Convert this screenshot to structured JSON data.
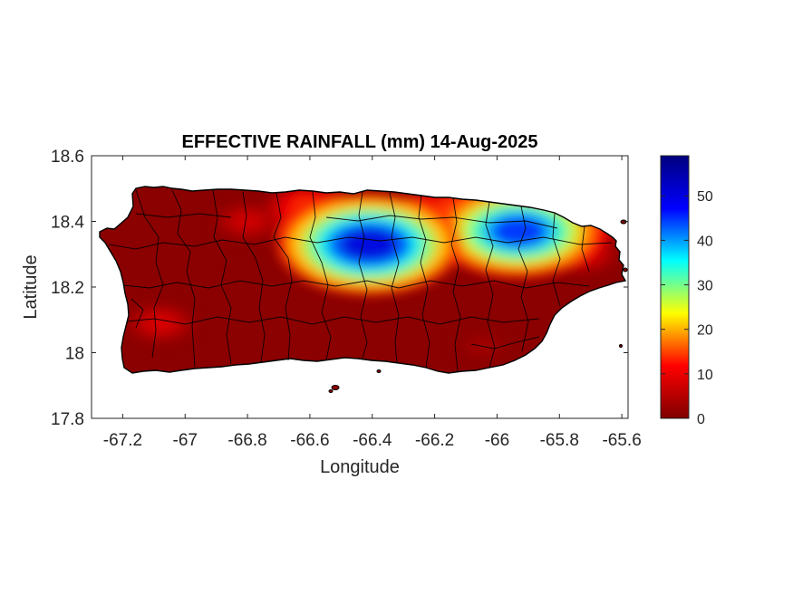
{
  "figure": {
    "title": "EFFECTIVE RAINFALL (mm) 14-Aug-2025",
    "xlabel": "Longitude",
    "ylabel": "Latitude",
    "background": "#ffffff"
  },
  "map": {
    "region": "Puerto Rico",
    "xlim": [
      -67.3,
      -65.58
    ],
    "ylim": [
      17.8,
      18.6
    ],
    "x_ticks": [
      {
        "value": -67.2,
        "label": "-67.2"
      },
      {
        "value": -67.0,
        "label": "-67"
      },
      {
        "value": -66.8,
        "label": "-66.8"
      },
      {
        "value": -66.6,
        "label": "-66.6"
      },
      {
        "value": -66.4,
        "label": "-66.4"
      },
      {
        "value": -66.2,
        "label": "-66.2"
      },
      {
        "value": -66.0,
        "label": "-66"
      },
      {
        "value": -65.8,
        "label": "-65.8"
      },
      {
        "value": -65.6,
        "label": "-65.6"
      }
    ],
    "y_ticks": [
      {
        "value": 17.8,
        "label": "17.8"
      },
      {
        "value": 18.0,
        "label": "18"
      },
      {
        "value": 18.2,
        "label": "18.2"
      },
      {
        "value": 18.4,
        "label": "18.4"
      },
      {
        "value": 18.6,
        "label": "18.6"
      }
    ],
    "base_value_mm": 0,
    "rainfall_hotspots": [
      {
        "lon": -66.41,
        "lat": 18.33,
        "value": 58
      },
      {
        "lon": -66.48,
        "lat": 18.36,
        "value": 40
      },
      {
        "lon": -66.33,
        "lat": 18.35,
        "value": 35
      },
      {
        "lon": -65.93,
        "lat": 18.37,
        "value": 52
      },
      {
        "lon": -66.03,
        "lat": 18.4,
        "value": 38
      },
      {
        "lon": -65.82,
        "lat": 18.38,
        "value": 32
      },
      {
        "lon": -66.18,
        "lat": 18.42,
        "value": 22
      },
      {
        "lon": -66.6,
        "lat": 18.44,
        "value": 18
      },
      {
        "lon": -66.8,
        "lat": 18.4,
        "value": 9
      },
      {
        "lon": -65.72,
        "lat": 18.3,
        "value": 10
      },
      {
        "lon": -67.08,
        "lat": 18.09,
        "value": 10
      },
      {
        "lon": -66.05,
        "lat": 18.02,
        "value": 4
      }
    ]
  },
  "colorbar": {
    "min": 0,
    "max": 59,
    "colormap": "jet",
    "colors": [
      "#7f0000",
      "#ff0000",
      "#ffff00",
      "#00ffff",
      "#0000ff",
      "#00007f"
    ],
    "ticks": [
      {
        "value": 0,
        "label": "0"
      },
      {
        "value": 10,
        "label": "10"
      },
      {
        "value": 20,
        "label": "20"
      },
      {
        "value": 30,
        "label": "30"
      },
      {
        "value": 40,
        "label": "40"
      },
      {
        "value": 50,
        "label": "50"
      }
    ]
  }
}
